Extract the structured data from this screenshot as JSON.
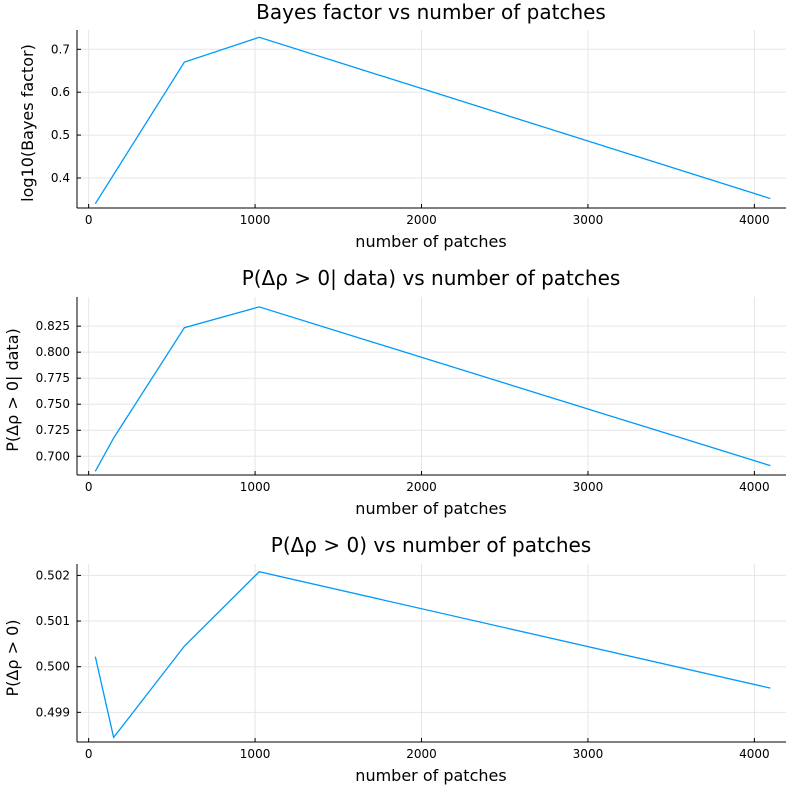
{
  "colors": {
    "series": "#009AFA"
  },
  "chart_data": [
    {
      "type": "line",
      "title": "Bayes factor vs number of patches",
      "xlabel": "number of patches",
      "ylabel": "log10(Bayes factor)",
      "xlim": [
        -70,
        4190
      ],
      "ylim": [
        0.33,
        0.745
      ],
      "xticks": [
        0,
        1000,
        2000,
        3000,
        4000
      ],
      "xtick_labels": [
        "0",
        "1000",
        "2000",
        "3000",
        "4000"
      ],
      "yticks": [
        0.4,
        0.5,
        0.6,
        0.7
      ],
      "ytick_labels": [
        "0.4",
        "0.5",
        "0.6",
        "0.7"
      ],
      "grid": true,
      "series": [
        {
          "x": [
            40,
            575,
            1025,
            4096
          ],
          "y": [
            0.34,
            0.67,
            0.728,
            0.352
          ]
        }
      ]
    },
    {
      "type": "line",
      "title": "P(Δρ > 0| data) vs number of patches",
      "xlabel": "number of patches",
      "ylabel": "P(Δρ > 0| data)",
      "xlim": [
        -70,
        4190
      ],
      "ylim": [
        0.682,
        0.853
      ],
      "xticks": [
        0,
        1000,
        2000,
        3000,
        4000
      ],
      "xtick_labels": [
        "0",
        "1000",
        "2000",
        "3000",
        "4000"
      ],
      "yticks": [
        0.7,
        0.725,
        0.75,
        0.775,
        0.8,
        0.825
      ],
      "ytick_labels": [
        "0.700",
        "0.725",
        "0.750",
        "0.775",
        "0.800",
        "0.825"
      ],
      "grid": true,
      "series": [
        {
          "x": [
            40,
            150,
            575,
            1025,
            4096
          ],
          "y": [
            0.6855,
            0.7175,
            0.8235,
            0.8435,
            0.691
          ]
        }
      ]
    },
    {
      "type": "line",
      "title": "P(Δρ > 0) vs number of patches",
      "xlabel": "number of patches",
      "ylabel": "P(Δρ > 0)",
      "xlim": [
        -70,
        4190
      ],
      "ylim": [
        0.49835,
        0.50225
      ],
      "xticks": [
        0,
        1000,
        2000,
        3000,
        4000
      ],
      "xtick_labels": [
        "0",
        "1000",
        "2000",
        "3000",
        "4000"
      ],
      "yticks": [
        0.499,
        0.5,
        0.501,
        0.502
      ],
      "ytick_labels": [
        "0.499",
        "0.500",
        "0.501",
        "0.502"
      ],
      "grid": true,
      "series": [
        {
          "x": [
            40,
            150,
            575,
            1025,
            4096
          ],
          "y": [
            0.50022,
            0.49845,
            0.50045,
            0.50208,
            0.49953
          ]
        }
      ]
    }
  ]
}
